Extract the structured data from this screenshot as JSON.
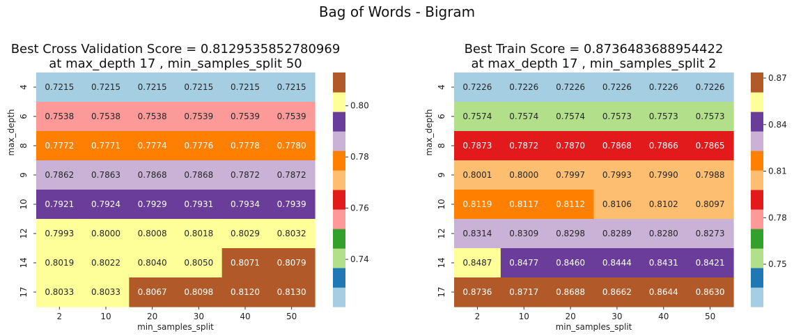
{
  "suptitle": "Bag of Words - Bigram",
  "chart_data": [
    {
      "type": "heatmap",
      "title": "Best Cross Validation Score = 0.8129535852780969",
      "subtitle": "at max_depth 17 , min_samples_split 50",
      "xlabel": "min_samples_split",
      "ylabel": "max_depth",
      "x": [
        "2",
        "10",
        "20",
        "30",
        "40",
        "50"
      ],
      "y": [
        "4",
        "6",
        "8",
        "9",
        "10",
        "12",
        "14",
        "17"
      ],
      "values": [
        [
          "0.7215",
          "0.7215",
          "0.7215",
          "0.7215",
          "0.7215",
          "0.7215"
        ],
        [
          "0.7538",
          "0.7538",
          "0.7538",
          "0.7539",
          "0.7539",
          "0.7539"
        ],
        [
          "0.7772",
          "0.7771",
          "0.7774",
          "0.7776",
          "0.7778",
          "0.7780"
        ],
        [
          "0.7862",
          "0.7863",
          "0.7868",
          "0.7868",
          "0.7872",
          "0.7872"
        ],
        [
          "0.7921",
          "0.7924",
          "0.7929",
          "0.7931",
          "0.7934",
          "0.7939"
        ],
        [
          "0.7993",
          "0.8000",
          "0.8008",
          "0.8018",
          "0.8029",
          "0.8032"
        ],
        [
          "0.8019",
          "0.8022",
          "0.8040",
          "0.8050",
          "0.8071",
          "0.8079"
        ],
        [
          "0.8033",
          "0.8033",
          "0.8067",
          "0.8098",
          "0.8120",
          "0.8130"
        ]
      ],
      "colormap": "Paired",
      "colorbar": {
        "range": [
          0.7215,
          0.813
        ],
        "ticks": [
          "0.74",
          "0.76",
          "0.78",
          "0.80"
        ]
      }
    },
    {
      "type": "heatmap",
      "title": "Best Train Score = 0.8736483688954422",
      "subtitle": "at max_depth 17 , min_samples_split 2",
      "xlabel": "min_samples_split",
      "ylabel": "max_depth",
      "x": [
        "2",
        "10",
        "20",
        "30",
        "40",
        "50"
      ],
      "y": [
        "4",
        "6",
        "8",
        "9",
        "10",
        "12",
        "14",
        "17"
      ],
      "values": [
        [
          "0.7226",
          "0.7226",
          "0.7226",
          "0.7226",
          "0.7226",
          "0.7226"
        ],
        [
          "0.7574",
          "0.7574",
          "0.7574",
          "0.7573",
          "0.7573",
          "0.7573"
        ],
        [
          "0.7873",
          "0.7872",
          "0.7870",
          "0.7868",
          "0.7866",
          "0.7865"
        ],
        [
          "0.8001",
          "0.8000",
          "0.7997",
          "0.7993",
          "0.7990",
          "0.7988"
        ],
        [
          "0.8119",
          "0.8117",
          "0.8112",
          "0.8106",
          "0.8102",
          "0.8097"
        ],
        [
          "0.8314",
          "0.8309",
          "0.8298",
          "0.8289",
          "0.8280",
          "0.8273"
        ],
        [
          "0.8487",
          "0.8477",
          "0.8460",
          "0.8444",
          "0.8431",
          "0.8421"
        ],
        [
          "0.8736",
          "0.8717",
          "0.8688",
          "0.8662",
          "0.8644",
          "0.8630"
        ]
      ],
      "colormap": "Paired",
      "colorbar": {
        "range": [
          0.7226,
          0.8736
        ],
        "ticks": [
          "0.75",
          "0.78",
          "0.81",
          "0.84",
          "0.87"
        ]
      }
    }
  ],
  "palette": [
    "#a6cee3",
    "#1f78b4",
    "#b2df8a",
    "#33a02c",
    "#fb9a99",
    "#e31a1c",
    "#fdbf6f",
    "#ff7f00",
    "#cab2d6",
    "#6a3d9a",
    "#ffff99",
    "#b15928"
  ]
}
